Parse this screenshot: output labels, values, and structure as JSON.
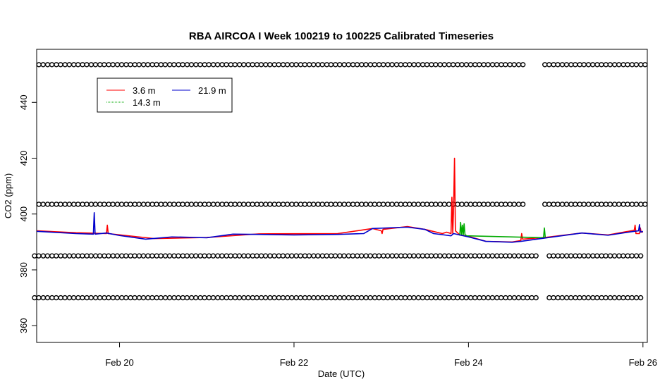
{
  "chart_data": {
    "type": "line",
    "title": "RBA AIRCOA I  Week 100219 to 100225  Calibrated Timeseries",
    "xlabel": "Date (UTC)",
    "ylabel": "CO2 (ppm)",
    "x_unit": "days",
    "xlim": [
      19.05,
      26.05
    ],
    "ylim": [
      354,
      459
    ],
    "x_ticks": [
      {
        "value": 20,
        "label": "Feb 20"
      },
      {
        "value": 22,
        "label": "Feb 22"
      },
      {
        "value": 24,
        "label": "Feb 24"
      },
      {
        "value": 26,
        "label": "Feb 26"
      }
    ],
    "y_ticks": [
      {
        "value": 360,
        "label": "360"
      },
      {
        "value": 380,
        "label": "380"
      },
      {
        "value": 400,
        "label": "400"
      },
      {
        "value": 420,
        "label": "420"
      },
      {
        "value": 440,
        "label": "440"
      }
    ],
    "legend": {
      "placement": "top-left",
      "entries": [
        {
          "name": "3.6 m",
          "color": "#ff0000"
        },
        {
          "name": "21.9 m",
          "color": "#0000cc"
        },
        {
          "name": "14.3 m",
          "color": "#00aa00"
        }
      ]
    },
    "series": [
      {
        "name": "3.6 m",
        "color": "#ff0000",
        "points": [
          [
            19.05,
            394.0
          ],
          [
            19.5,
            393.3
          ],
          [
            19.85,
            393.0
          ],
          [
            19.86,
            396.0
          ],
          [
            19.87,
            393.0
          ],
          [
            20.4,
            391.2
          ],
          [
            21.0,
            391.6
          ],
          [
            21.6,
            392.9
          ],
          [
            22.5,
            393.0
          ],
          [
            22.9,
            394.8
          ],
          [
            23.0,
            394.0
          ],
          [
            23.01,
            393.0
          ],
          [
            23.02,
            394.5
          ],
          [
            23.3,
            395.5
          ],
          [
            23.5,
            394.5
          ],
          [
            23.7,
            393.0
          ],
          [
            23.75,
            393.5
          ],
          [
            23.8,
            393.0
          ],
          [
            23.81,
            406.0
          ],
          [
            23.82,
            393.0
          ],
          [
            23.83,
            403.0
          ],
          [
            23.84,
            420.0
          ],
          [
            23.85,
            394.0
          ],
          [
            23.9,
            392.5
          ],
          [
            24.0,
            392.0
          ],
          [
            24.2,
            390.2
          ],
          [
            24.5,
            390.0
          ],
          [
            24.6,
            390.5
          ],
          [
            24.61,
            393.0
          ],
          [
            24.62,
            391.0
          ],
          [
            24.9,
            391.7
          ],
          [
            25.3,
            393.2
          ],
          [
            25.6,
            392.5
          ],
          [
            25.9,
            394.2
          ],
          [
            25.91,
            396.0
          ],
          [
            25.92,
            393.0
          ],
          [
            25.96,
            393.0
          ],
          [
            25.97,
            395.0
          ],
          [
            25.98,
            393.5
          ],
          [
            26.0,
            393.5
          ]
        ]
      },
      {
        "name": "14.3 m",
        "color": "#00aa00",
        "points": [
          [
            23.9,
            392.3
          ],
          [
            23.91,
            397.0
          ],
          [
            23.92,
            392.5
          ],
          [
            23.93,
            396.0
          ],
          [
            23.94,
            392.5
          ],
          [
            23.95,
            396.5
          ],
          [
            23.96,
            392.6
          ],
          [
            23.98,
            392.2
          ],
          [
            24.86,
            391.5
          ],
          [
            24.87,
            395.0
          ],
          [
            24.88,
            391.7
          ]
        ]
      },
      {
        "name": "21.9 m",
        "color": "#0000cc",
        "points": [
          [
            19.05,
            393.8
          ],
          [
            19.5,
            393.0
          ],
          [
            19.7,
            392.8
          ],
          [
            19.71,
            400.5
          ],
          [
            19.72,
            392.8
          ],
          [
            19.85,
            393.2
          ],
          [
            20.0,
            392.3
          ],
          [
            20.3,
            391.0
          ],
          [
            20.6,
            391.8
          ],
          [
            21.0,
            391.5
          ],
          [
            21.3,
            392.8
          ],
          [
            21.6,
            392.7
          ],
          [
            22.0,
            392.5
          ],
          [
            22.5,
            392.7
          ],
          [
            22.8,
            393.0
          ],
          [
            22.9,
            394.8
          ],
          [
            23.3,
            395.3
          ],
          [
            23.5,
            394.5
          ],
          [
            23.6,
            393.0
          ],
          [
            23.8,
            392.2
          ],
          [
            23.83,
            393.0
          ],
          [
            23.9,
            392.5
          ],
          [
            24.0,
            391.8
          ],
          [
            24.2,
            390.2
          ],
          [
            24.5,
            389.9
          ],
          [
            24.6,
            390.2
          ],
          [
            24.9,
            391.5
          ],
          [
            25.3,
            393.2
          ],
          [
            25.6,
            392.4
          ],
          [
            25.9,
            393.8
          ],
          [
            25.95,
            394.0
          ],
          [
            25.96,
            396.2
          ],
          [
            25.97,
            393.5
          ],
          [
            26.0,
            393.8
          ]
        ]
      }
    ],
    "marker_rows": [
      {
        "y": 453.5,
        "start": 19.1,
        "end": 26.0,
        "step": 0.1,
        "gap": [
          24.7,
          24.85
        ]
      },
      {
        "y": 403.5,
        "start": 19.1,
        "end": 26.0,
        "step": 0.1,
        "gap": [
          24.7,
          24.9
        ]
      },
      {
        "y": 385.0,
        "start": 19.05,
        "end": 26.0,
        "step": 0.1,
        "gap": [
          24.75,
          24.9
        ]
      },
      {
        "y": 370.0,
        "start": 19.05,
        "end": 26.0,
        "step": 0.1,
        "gap": [
          24.75,
          24.9
        ]
      }
    ]
  }
}
